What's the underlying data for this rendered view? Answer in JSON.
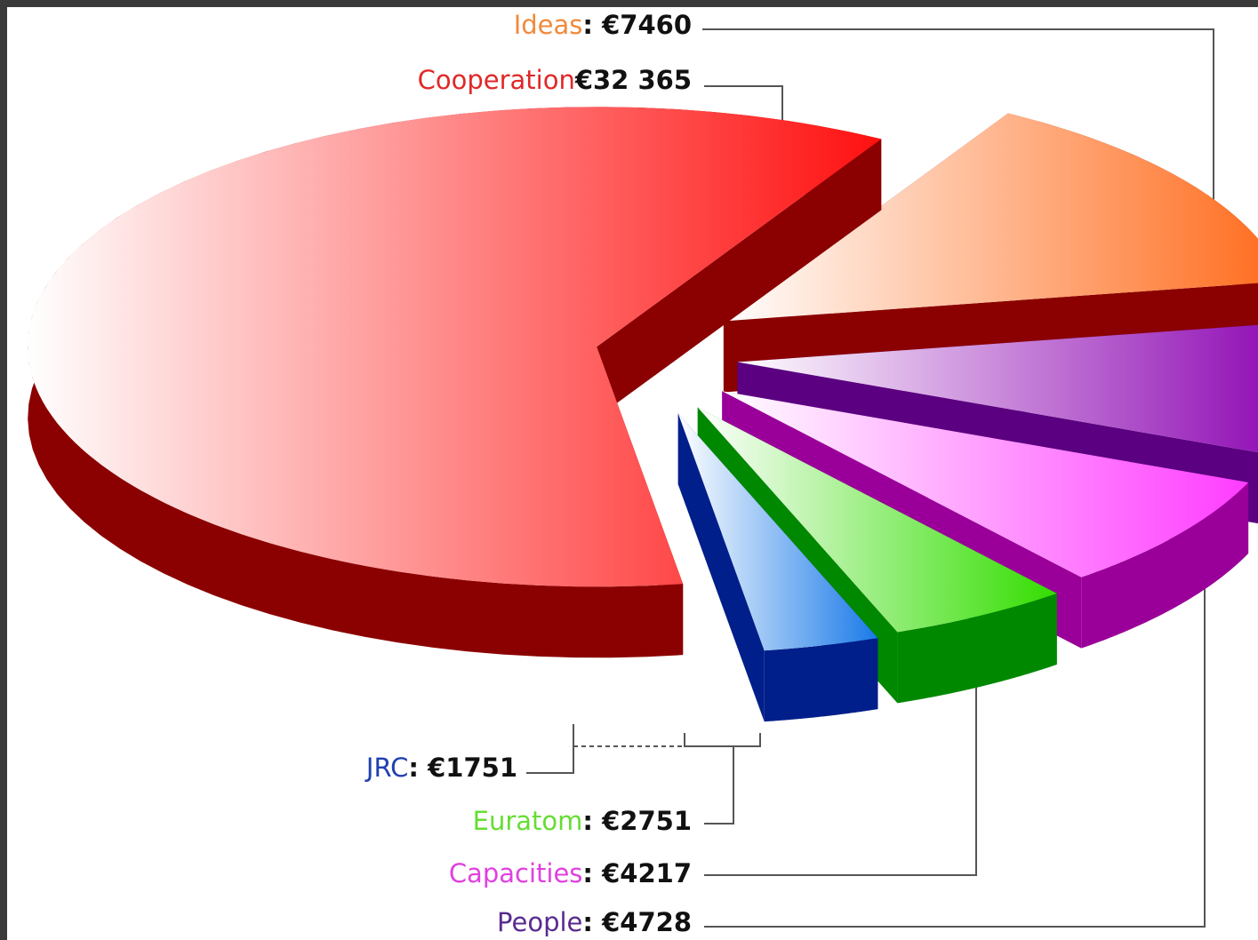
{
  "chart_data": {
    "type": "pie",
    "categories": [
      "Ideas",
      "People",
      "Capacities",
      "Euratom",
      "JRC",
      "Cooperation"
    ],
    "values": [
      7460,
      4728,
      4217,
      2751,
      1751,
      32365
    ],
    "value_labels": [
      ": €7460",
      ": €4728",
      ": €4217",
      ": €2751",
      ": €1751",
      "€32 365"
    ],
    "colors": [
      "#ff6a1a",
      "#8a00b0",
      "#ff3cff",
      "#33dd00",
      "#1a7ae8",
      "#ff1010"
    ],
    "side_colors": [
      "#8b0000",
      "#5a0080",
      "#9a0099",
      "#008800",
      "#001f8a",
      "#8b0000"
    ],
    "label_colors": [
      "#f08a3c",
      "#5a2a90",
      "#e040e0",
      "#66dd33",
      "#2040b0",
      "#e02828"
    ]
  }
}
